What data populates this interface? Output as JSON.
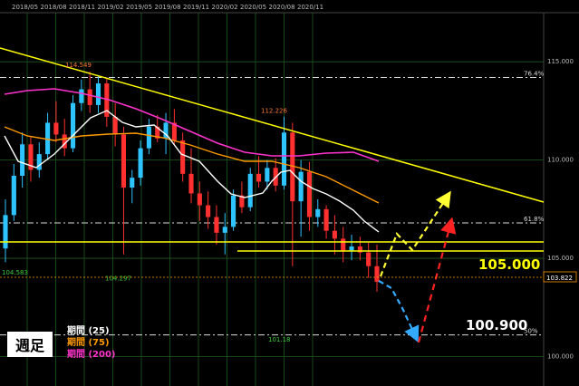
{
  "chart_data": {
    "type": "candlestick",
    "period_label": "週足",
    "x_ticks": [
      "2018/05",
      "2018/08",
      "2018/11",
      "2019/02",
      "2019/05",
      "2019/08",
      "2019/11",
      "2020/02",
      "2020/05",
      "2020/08",
      "2020/11"
    ],
    "y_ticks": [
      "115.000",
      "110.000",
      "105.000",
      "100.000"
    ],
    "ylim": [
      98.5,
      117.5
    ],
    "current_price": "103.822",
    "fib_levels": [
      {
        "label": "76.4%",
        "value": 114.2
      },
      {
        "label": "61.8%",
        "value": 106.8
      },
      {
        "label": "50%",
        "value": 101.1
      }
    ],
    "price_annotations": [
      {
        "text": "114.549",
        "value": 114.549,
        "color": "#ff7a3a"
      },
      {
        "text": "112.226",
        "value": 112.226,
        "color": "#ff7a3a"
      },
      {
        "text": "104.583",
        "value": 104.583,
        "color": "#3ec93e"
      },
      {
        "text": "104.297",
        "value": 104.297,
        "color": "#3ec93e"
      },
      {
        "text": "101.18",
        "value": 101.18,
        "color": "#3ec93e"
      }
    ],
    "levels": [
      {
        "text": "105.000",
        "value": 105.0,
        "color": "#ffff00"
      },
      {
        "text": "100.900",
        "value": 100.9,
        "color": "#ffffff"
      }
    ],
    "moving_averages": [
      {
        "name": "期間 (25)",
        "color": "#ffffff"
      },
      {
        "name": "期間 (75)",
        "color": "#ff9900"
      },
      {
        "name": "期間 (200)",
        "color": "#ff33cc"
      }
    ],
    "candles": [
      [
        105.5,
        108.0,
        104.8,
        107.2
      ],
      [
        107.2,
        109.8,
        106.9,
        109.2
      ],
      [
        109.2,
        111.4,
        108.6,
        110.8
      ],
      [
        110.8,
        111.2,
        108.9,
        109.5
      ],
      [
        109.5,
        110.9,
        109.1,
        110.3
      ],
      [
        110.3,
        112.4,
        110.0,
        111.9
      ],
      [
        111.9,
        113.0,
        110.9,
        111.3
      ],
      [
        111.3,
        112.1,
        110.2,
        110.6
      ],
      [
        110.6,
        113.3,
        110.4,
        112.9
      ],
      [
        112.9,
        114.1,
        112.5,
        113.6
      ],
      [
        113.6,
        114.5,
        112.4,
        112.8
      ],
      [
        112.8,
        114.3,
        112.4,
        113.9
      ],
      [
        113.9,
        114.2,
        111.7,
        112.2
      ],
      [
        112.2,
        112.9,
        110.7,
        111.3
      ],
      [
        111.3,
        111.7,
        105.2,
        108.6
      ],
      [
        108.6,
        109.5,
        107.8,
        109.1
      ],
      [
        109.1,
        111.0,
        108.7,
        110.6
      ],
      [
        110.6,
        112.1,
        110.3,
        111.7
      ],
      [
        111.7,
        112.3,
        110.9,
        111.1
      ],
      [
        111.1,
        112.4,
        110.3,
        111.9
      ],
      [
        111.9,
        112.6,
        110.8,
        111.0
      ],
      [
        111.0,
        111.4,
        108.9,
        109.3
      ],
      [
        109.3,
        110.6,
        107.8,
        108.3
      ],
      [
        108.3,
        108.9,
        106.9,
        107.7
      ],
      [
        107.7,
        108.4,
        106.5,
        107.1
      ],
      [
        107.1,
        107.7,
        105.7,
        106.3
      ],
      [
        106.3,
        107.3,
        105.2,
        106.6
      ],
      [
        106.6,
        108.5,
        106.4,
        108.2
      ],
      [
        108.2,
        108.9,
        107.3,
        107.6
      ],
      [
        107.6,
        109.6,
        107.4,
        109.3
      ],
      [
        109.3,
        110.2,
        108.6,
        108.9
      ],
      [
        108.9,
        110.0,
        108.5,
        109.6
      ],
      [
        109.6,
        110.1,
        108.4,
        108.7
      ],
      [
        108.7,
        112.2,
        108.5,
        111.4
      ],
      [
        111.4,
        111.9,
        104.6,
        107.9
      ],
      [
        107.9,
        110.0,
        106.1,
        109.4
      ],
      [
        109.4,
        109.9,
        106.4,
        107.1
      ],
      [
        107.1,
        108.0,
        106.6,
        107.5
      ],
      [
        107.5,
        107.7,
        106.0,
        106.4
      ],
      [
        106.4,
        107.2,
        105.2,
        106.0
      ],
      [
        106.0,
        106.6,
        104.8,
        105.4
      ],
      [
        105.4,
        106.2,
        104.9,
        105.6
      ],
      [
        105.6,
        106.1,
        104.9,
        105.3
      ],
      [
        105.3,
        105.8,
        104.0,
        104.6
      ],
      [
        104.6,
        105.7,
        103.3,
        103.8
      ]
    ]
  }
}
